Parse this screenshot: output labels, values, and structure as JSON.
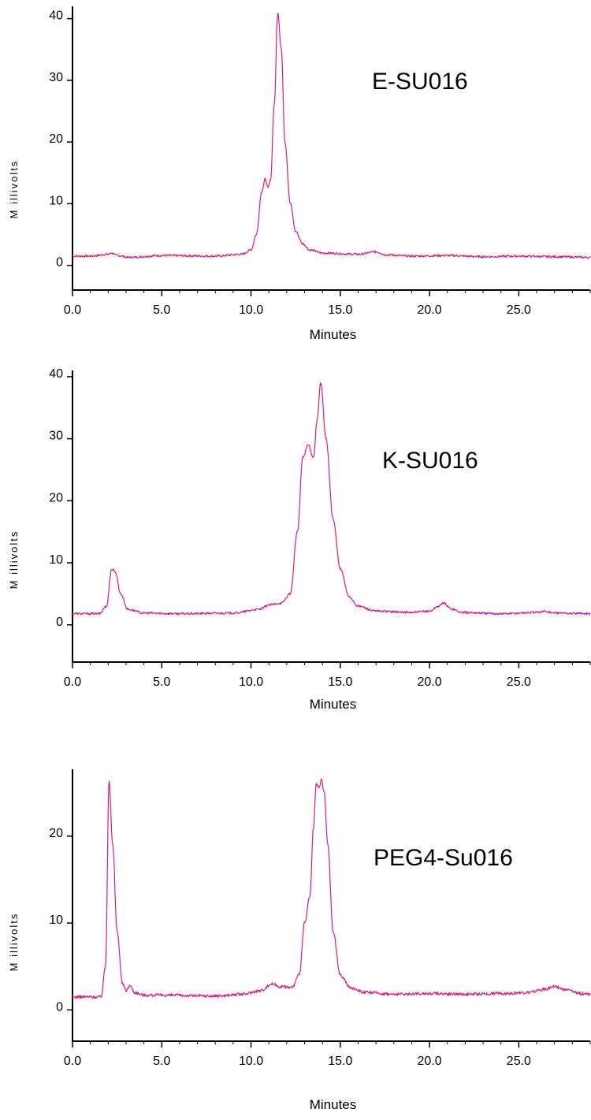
{
  "colors": {
    "trace": "#e0197d",
    "axis": "#000000"
  },
  "chart_data": [
    {
      "type": "line",
      "title": "",
      "annotation": "E-SU016",
      "xlabel": "Minutes",
      "ylabel": "M illivolts",
      "xlim": [
        0,
        29
      ],
      "ylim": [
        -4,
        42
      ],
      "xticks": [
        "0.0",
        "5.0",
        "10.0",
        "15.0",
        "20.0",
        "25.0"
      ],
      "yticks": [
        "0",
        "10",
        "20",
        "30",
        "40"
      ],
      "series": [
        {
          "x": [
            0.0,
            1.0,
            2.0,
            2.2,
            2.5,
            3.2,
            5.0,
            8.0,
            9.5,
            10.0,
            10.3,
            10.6,
            10.8,
            10.95,
            11.1,
            11.3,
            11.5,
            11.7,
            11.9,
            12.2,
            12.5,
            12.9,
            13.3,
            14.0,
            16.0,
            17.0,
            17.6,
            19.0,
            21.0,
            23.0,
            25.0,
            27.0,
            29.0
          ],
          "y": [
            1.5,
            1.5,
            1.8,
            2.0,
            1.6,
            1.3,
            1.6,
            1.5,
            1.8,
            2.5,
            5.0,
            12.0,
            14.0,
            12.5,
            14.0,
            26.0,
            41.0,
            35.0,
            20.0,
            10.0,
            5.5,
            3.5,
            2.5,
            2.0,
            1.8,
            2.2,
            1.7,
            1.5,
            1.6,
            1.4,
            1.5,
            1.4,
            1.3
          ]
        }
      ]
    },
    {
      "type": "line",
      "title": "",
      "annotation": "K-SU016",
      "xlabel": "Minutes",
      "ylabel": "M illivolts",
      "xlim": [
        0,
        29
      ],
      "ylim": [
        -6,
        41
      ],
      "xticks": [
        "0.0",
        "5.0",
        "10.0",
        "15.0",
        "20.0",
        "25.0"
      ],
      "yticks": [
        "0",
        "10",
        "20",
        "30",
        "40"
      ],
      "series": [
        {
          "x": [
            0.0,
            1.5,
            1.9,
            2.2,
            2.4,
            2.7,
            3.1,
            4.0,
            6.0,
            9.0,
            10.5,
            11.0,
            11.7,
            12.2,
            12.6,
            12.9,
            13.2,
            13.5,
            13.7,
            13.9,
            14.2,
            14.6,
            15.0,
            15.5,
            16.0,
            17.0,
            19.0,
            20.0,
            20.5,
            20.8,
            21.2,
            21.8,
            24.0,
            26.0,
            26.4,
            27.0,
            29.0
          ],
          "y": [
            1.8,
            1.8,
            3.0,
            9.0,
            8.5,
            5.0,
            2.5,
            1.9,
            1.8,
            1.9,
            2.5,
            3.2,
            3.5,
            5.0,
            15.0,
            27.0,
            29.0,
            27.0,
            33.0,
            39.0,
            30.0,
            17.0,
            9.0,
            4.5,
            3.0,
            2.2,
            2.0,
            2.2,
            3.0,
            3.5,
            2.6,
            2.0,
            1.8,
            2.0,
            2.2,
            1.9,
            1.8
          ]
        }
      ]
    },
    {
      "type": "line",
      "title": "",
      "annotation": "PEG4-Su016",
      "xlabel": "Minutes",
      "ylabel": "M illivolts",
      "xlim": [
        0,
        29
      ],
      "ylim": [
        -3.6,
        27.7
      ],
      "xticks": [
        "0.0",
        "5.0",
        "10.0",
        "15.0",
        "20.0",
        "25.0"
      ],
      "yticks": [
        "0",
        "10",
        "20"
      ],
      "series": [
        {
          "x": [
            0.0,
            1.6,
            1.85,
            2.05,
            2.25,
            2.5,
            2.8,
            3.0,
            3.2,
            3.5,
            4.0,
            5.0,
            8.0,
            9.5,
            10.5,
            11.2,
            11.6,
            12.3,
            12.7,
            13.0,
            13.3,
            13.5,
            13.65,
            13.8,
            13.95,
            14.1,
            14.3,
            14.6,
            15.0,
            15.6,
            16.5,
            18.0,
            20.0,
            22.0,
            24.0,
            25.5,
            26.5,
            27.0,
            27.6,
            28.5,
            29.0
          ],
          "y": [
            1.5,
            1.5,
            5.0,
            26.5,
            19.0,
            9.0,
            3.0,
            2.2,
            2.8,
            2.0,
            1.7,
            1.7,
            1.6,
            1.8,
            2.2,
            3.0,
            2.7,
            2.6,
            4.0,
            10.0,
            13.0,
            21.0,
            26.0,
            25.5,
            26.5,
            25.0,
            19.0,
            9.0,
            4.0,
            2.5,
            2.0,
            1.8,
            1.9,
            1.8,
            1.9,
            2.0,
            2.4,
            2.7,
            2.3,
            1.9,
            1.8
          ]
        }
      ]
    }
  ]
}
